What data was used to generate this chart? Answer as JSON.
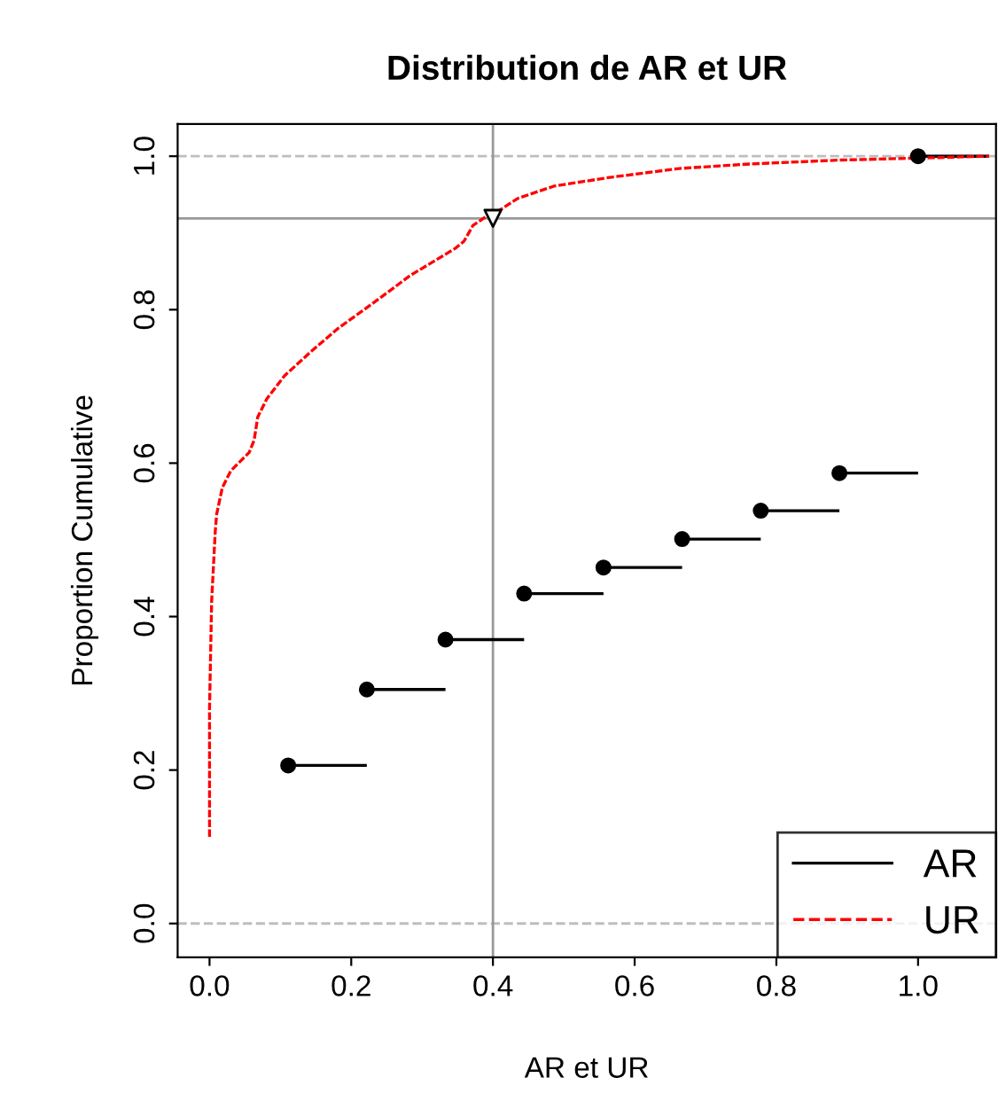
{
  "chart_data": {
    "type": "step",
    "title": "Distribution de AR et UR",
    "xlabel": "AR et UR",
    "ylabel": "Proportion Cumulative",
    "xlim": [
      -0.045,
      1.11
    ],
    "ylim": [
      -0.044,
      1.042
    ],
    "xticks": [
      {
        "value": 0,
        "label": "0.0"
      },
      {
        "value": 0.2,
        "label": "0.2"
      },
      {
        "value": 0.4,
        "label": "0.4"
      },
      {
        "value": 0.6,
        "label": "0.6"
      },
      {
        "value": 0.8,
        "label": "0.8"
      },
      {
        "value": 1,
        "label": "1.0"
      }
    ],
    "yticks": [
      {
        "value": 0,
        "label": "0.0"
      },
      {
        "value": 0.2,
        "label": "0.2"
      },
      {
        "value": 0.4,
        "label": "0.4"
      },
      {
        "value": 0.6,
        "label": "0.6"
      },
      {
        "value": 0.8,
        "label": "0.8"
      },
      {
        "value": 1,
        "label": "1.0"
      }
    ],
    "grid": false,
    "legend": "bottom right",
    "series": [
      {
        "name": "AR",
        "type": "step",
        "color": "#000000",
        "marker": "circle",
        "line_style": "solid",
        "x": [
          0.111,
          0.222,
          0.333,
          0.444,
          0.556,
          0.667,
          0.778,
          0.889,
          1.0,
          1.1
        ],
        "values": [
          0.206,
          0.305,
          0.37,
          0.43,
          0.464,
          0.501,
          0.538,
          0.587,
          1.0,
          1.0
        ]
      },
      {
        "name": "UR",
        "type": "line",
        "color": "#ff0000",
        "marker": "none",
        "line_style": "dashed",
        "x": [
          0,
          0,
          0.003,
          0.008,
          0.01,
          0.018,
          0.03,
          0.056,
          0.063,
          0.068,
          0.081,
          0.106,
          0.144,
          0.182,
          0.233,
          0.284,
          0.322,
          0.347,
          0.359,
          0.372,
          0.39,
          0.41,
          0.435,
          0.486,
          0.562,
          0.663,
          0.765,
          0.891,
          1.018,
          1.1
        ],
        "values": [
          0.113,
          0.28,
          0.42,
          0.51,
          0.533,
          0.568,
          0.59,
          0.614,
          0.63,
          0.66,
          0.684,
          0.714,
          0.746,
          0.776,
          0.81,
          0.845,
          0.866,
          0.88,
          0.889,
          0.91,
          0.921,
          0.93,
          0.945,
          0.961,
          0.972,
          0.984,
          0.99,
          0.995,
          0.998,
          1.0
        ]
      },
      {
        "type": "scatter",
        "color": "#000000",
        "marker": "triangle",
        "x": [
          0.4
        ],
        "values": [
          0.919
        ]
      }
    ],
    "ref_lines": [
      {
        "axis": "y",
        "value": 0,
        "color": "#bebebe",
        "line_style": "dashed"
      },
      {
        "axis": "y",
        "value": 1,
        "color": "#bebebe",
        "line_style": "dashed"
      },
      {
        "axis": "x",
        "value": 0.4,
        "color": "#999999",
        "line_style": "solid"
      },
      {
        "axis": "y",
        "value": 0.919,
        "color": "#999999",
        "line_style": "solid"
      }
    ]
  }
}
